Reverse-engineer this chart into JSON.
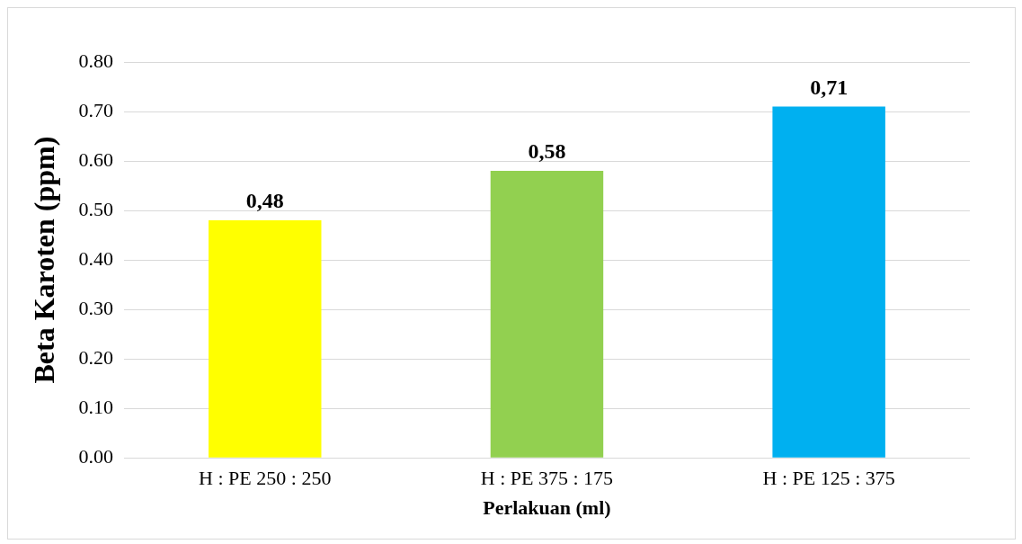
{
  "chart_data": {
    "type": "bar",
    "xlabel": "Perlakuan (ml)",
    "ylabel": "Beta Karoten (ppm)",
    "categories": [
      "H : PE 250 : 250",
      "H : PE 375 : 175",
      "H : PE 125 : 375"
    ],
    "values": [
      0.48,
      0.58,
      0.71
    ],
    "colors": [
      "#ffff00",
      "#92d050",
      "#00b0f0"
    ],
    "value_labels": [
      "0,48",
      "0,58",
      "0,71"
    ],
    "ylim": [
      0,
      0.8
    ],
    "yticks": [
      {
        "value": 0,
        "label": "0.00"
      },
      {
        "value": 0.1,
        "label": "0.10"
      },
      {
        "value": 0.2,
        "label": "0.20"
      },
      {
        "value": 0.3,
        "label": "0.30"
      },
      {
        "value": 0.4,
        "label": "0.40"
      },
      {
        "value": 0.5,
        "label": "0.50"
      },
      {
        "value": 0.6,
        "label": "0.60"
      },
      {
        "value": 0.7,
        "label": "0.70"
      },
      {
        "value": 0.8,
        "label": "0.80"
      }
    ],
    "grid": "y",
    "legend": false
  }
}
